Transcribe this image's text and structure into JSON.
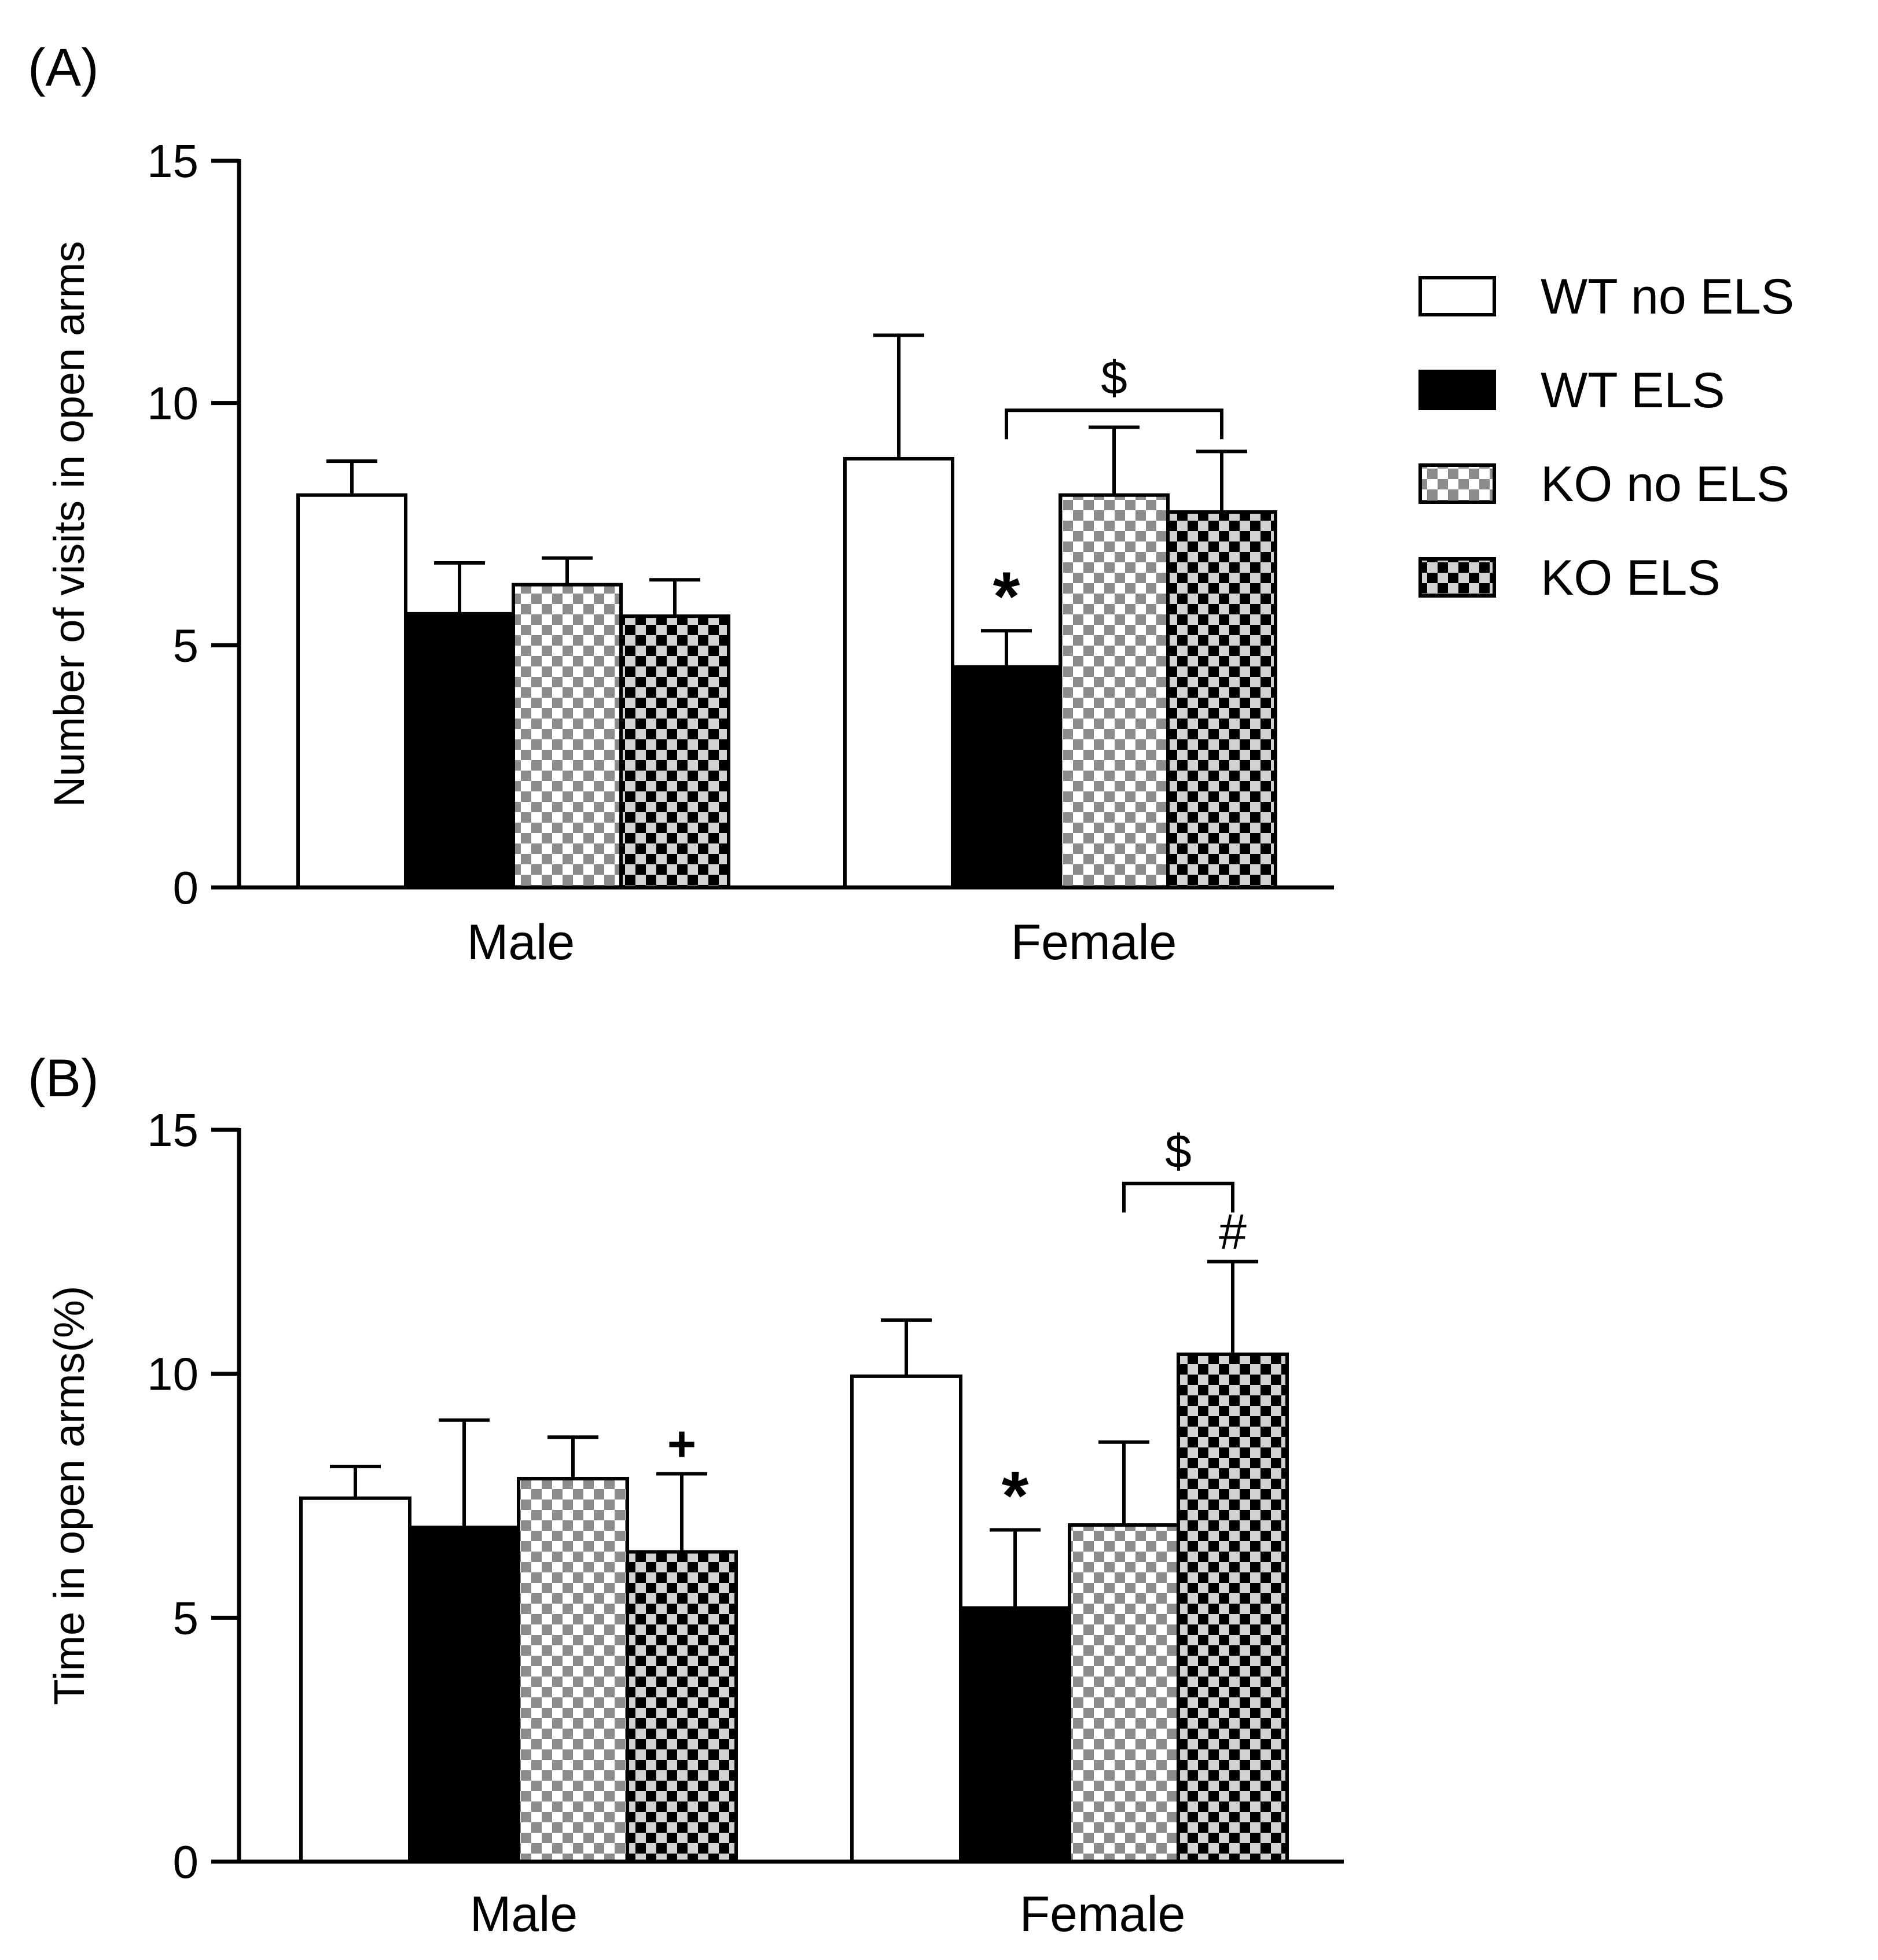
{
  "legend": [
    {
      "label": "WT no ELS",
      "pattern": "white"
    },
    {
      "label": "WT ELS",
      "pattern": "black"
    },
    {
      "label": "KO no ELS",
      "pattern": "check-light"
    },
    {
      "label": "KO ELS",
      "pattern": "check-dark"
    }
  ],
  "colors": {
    "axis": "#000000",
    "bar_white": "#ffffff",
    "bar_black": "#000000",
    "check_gray": "#8c8c8c",
    "check_light": "#ffffff",
    "check_dark": "#000000",
    "check_pale": "#d2d2d2"
  },
  "chart_data": [
    {
      "type": "bar",
      "panel_label": "(A)",
      "ylabel": "Number of visits in open arms",
      "xlabel": "",
      "ylim": [
        0,
        15
      ],
      "yticks": [
        0,
        5,
        10,
        15
      ],
      "categories": [
        "Male",
        "Female"
      ],
      "series": [
        {
          "name": "WT no ELS",
          "values": [
            8.1,
            8.85
          ],
          "errors": [
            0.7,
            2.55
          ]
        },
        {
          "name": "WT ELS",
          "values": [
            5.65,
            4.55
          ],
          "errors": [
            1.05,
            0.75
          ]
        },
        {
          "name": "KO no ELS",
          "values": [
            6.25,
            8.1
          ],
          "errors": [
            0.55,
            1.4
          ]
        },
        {
          "name": "KO ELS",
          "values": [
            5.6,
            7.75
          ],
          "errors": [
            0.75,
            1.25
          ]
        }
      ],
      "annotations": [
        {
          "text": "*",
          "category": "Female",
          "series": "WT ELS"
        },
        {
          "text": "$",
          "category": "Female",
          "between": [
            "WT ELS",
            "KO ELS"
          ],
          "y": 9.85
        }
      ]
    },
    {
      "type": "bar",
      "panel_label": "(B)",
      "ylabel": "Time in open arms(%)",
      "xlabel": "",
      "ylim": [
        0,
        15
      ],
      "yticks": [
        0,
        5,
        10,
        15
      ],
      "categories": [
        "Male",
        "Female"
      ],
      "series": [
        {
          "name": "WT no ELS",
          "values": [
            7.45,
            9.95
          ],
          "errors": [
            0.65,
            1.15
          ]
        },
        {
          "name": "WT ELS",
          "values": [
            6.85,
            5.2
          ],
          "errors": [
            2.2,
            1.6
          ]
        },
        {
          "name": "KO no ELS",
          "values": [
            7.85,
            6.9
          ],
          "errors": [
            0.85,
            1.7
          ]
        },
        {
          "name": "KO ELS",
          "values": [
            6.35,
            10.4
          ],
          "errors": [
            1.6,
            1.9
          ]
        }
      ],
      "annotations": [
        {
          "text": "+",
          "category": "Male",
          "series": "KO ELS"
        },
        {
          "text": "*",
          "category": "Female",
          "series": "WT ELS"
        },
        {
          "text": "#",
          "category": "Female",
          "series": "KO ELS"
        },
        {
          "text": "$",
          "category": "Female",
          "between": [
            "KO no ELS",
            "KO ELS"
          ],
          "y": 13.9
        }
      ]
    }
  ]
}
